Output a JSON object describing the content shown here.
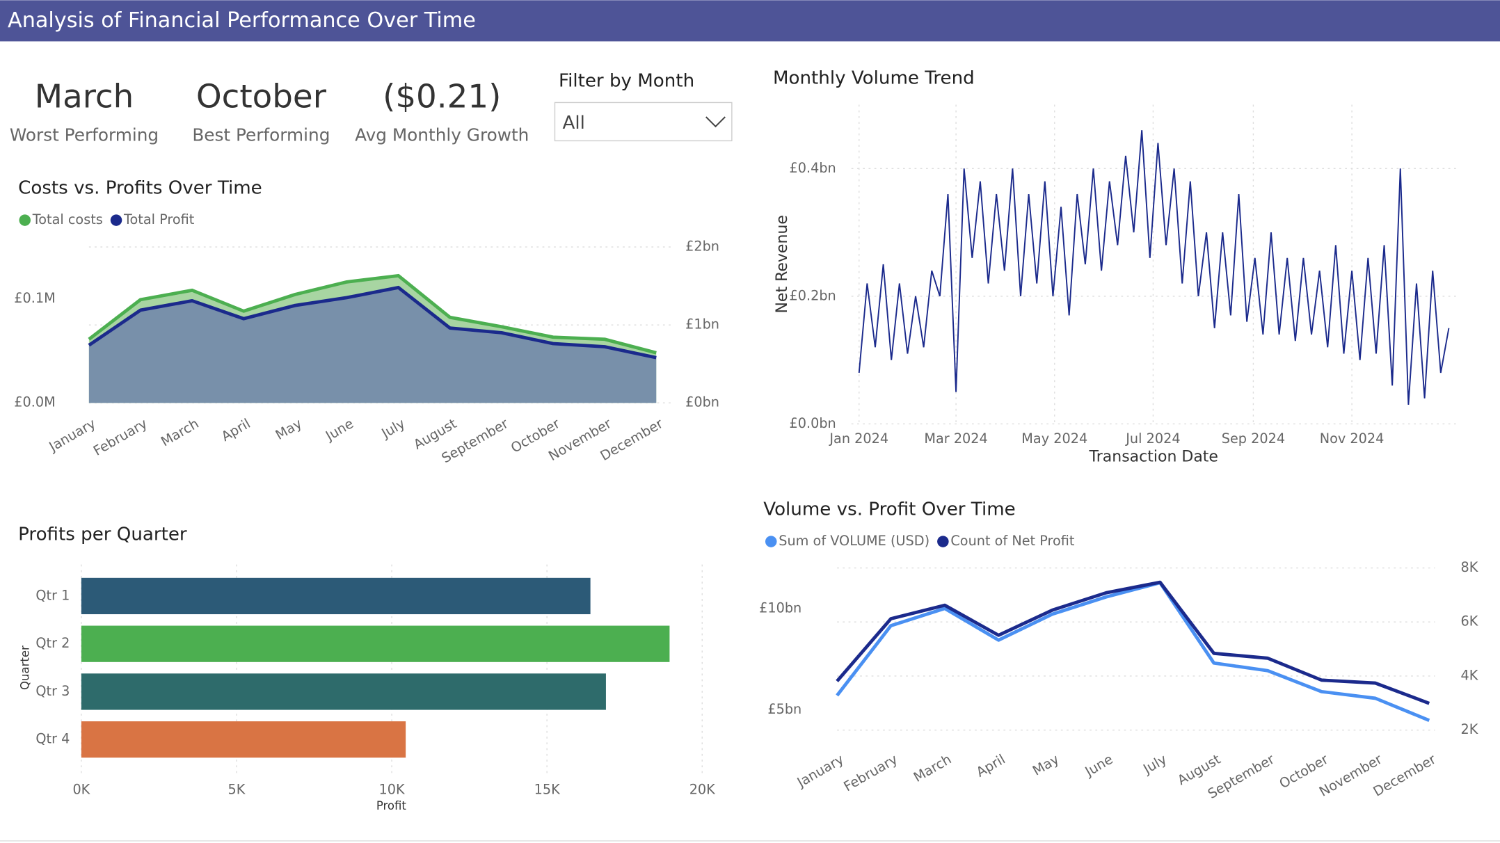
{
  "header": {
    "title": "Analysis of Financial Performance Over Time"
  },
  "kpis": [
    {
      "value": "March",
      "label": "Worst Performing"
    },
    {
      "value": "October",
      "label": "Best Performing"
    },
    {
      "value": "($0.21)",
      "label": "Avg Monthly Growth"
    }
  ],
  "filter": {
    "label": "Filter by Month",
    "selected": "All"
  },
  "chart_data": [
    {
      "type": "area",
      "title": "Costs vs. Profits Over Time",
      "categories": [
        "January",
        "February",
        "March",
        "April",
        "May",
        "June",
        "July",
        "August",
        "September",
        "October",
        "November",
        "December"
      ],
      "series": [
        {
          "name": "Total costs",
          "color": "#4caf50",
          "fill": "#a8d5a2",
          "values": [
            0.061,
            0.099,
            0.108,
            0.088,
            0.104,
            0.116,
            0.122,
            0.082,
            0.073,
            0.063,
            0.061,
            0.048
          ]
        },
        {
          "name": "Total Profit",
          "color": "#1b2a8c",
          "fill": "#7890aa",
          "axis": "y2",
          "values": [
            0.74,
            1.19,
            1.31,
            1.08,
            1.25,
            1.35,
            1.48,
            0.96,
            0.9,
            0.76,
            0.72,
            0.58
          ]
        }
      ],
      "ylim": [
        0,
        0.16
      ],
      "yticks": [
        {
          "value": 0,
          "label": "£0.0M"
        },
        {
          "value": 0.1,
          "label": "£0.1M"
        }
      ],
      "y2lim": [
        0,
        2.14
      ],
      "y2ticks": [
        {
          "value": 0,
          "label": "£0bn"
        },
        {
          "value": 1,
          "label": "£1bn"
        },
        {
          "value": 2,
          "label": "£2bn"
        }
      ],
      "grid": true
    },
    {
      "type": "line",
      "title": "Monthly Volume Trend",
      "xlabel": "Transaction Date",
      "ylabel": "Net Revenue",
      "color": "#1b2a8c",
      "x": [
        0,
        5,
        10,
        15,
        20,
        25,
        30,
        35,
        40,
        45,
        50,
        55,
        60,
        65,
        70,
        75,
        80,
        85,
        90,
        95,
        100,
        105,
        110,
        115,
        120,
        125,
        130,
        135,
        140,
        145,
        150,
        155,
        160,
        165,
        170,
        175,
        180,
        185,
        190,
        195,
        200,
        205,
        210,
        215,
        220,
        225,
        230,
        235,
        240,
        245,
        250,
        255,
        260,
        265,
        270,
        275,
        280,
        285,
        290,
        295,
        300,
        305,
        310,
        315,
        320,
        325,
        330,
        335,
        340,
        345,
        350,
        355,
        360,
        365
      ],
      "values": [
        0.08,
        0.22,
        0.12,
        0.25,
        0.1,
        0.22,
        0.11,
        0.2,
        0.12,
        0.24,
        0.2,
        0.36,
        0.05,
        0.4,
        0.26,
        0.38,
        0.22,
        0.36,
        0.24,
        0.4,
        0.2,
        0.36,
        0.22,
        0.38,
        0.2,
        0.34,
        0.17,
        0.36,
        0.25,
        0.4,
        0.24,
        0.38,
        0.28,
        0.42,
        0.3,
        0.46,
        0.26,
        0.44,
        0.28,
        0.4,
        0.22,
        0.38,
        0.2,
        0.3,
        0.15,
        0.3,
        0.17,
        0.36,
        0.16,
        0.26,
        0.14,
        0.3,
        0.14,
        0.26,
        0.13,
        0.26,
        0.14,
        0.24,
        0.12,
        0.28,
        0.11,
        0.24,
        0.1,
        0.26,
        0.11,
        0.28,
        0.06,
        0.4,
        0.03,
        0.22,
        0.04,
        0.24,
        0.08,
        0.15
      ],
      "xlim": [
        0,
        365
      ],
      "xticks": [
        {
          "value": 0,
          "label": "Jan 2024"
        },
        {
          "value": 60,
          "label": "Mar 2024"
        },
        {
          "value": 121,
          "label": "May 2024"
        },
        {
          "value": 182,
          "label": "Jul 2024"
        },
        {
          "value": 244,
          "label": "Sep 2024"
        },
        {
          "value": 305,
          "label": "Nov 2024"
        }
      ],
      "ylim": [
        0,
        0.5
      ],
      "yticks": [
        {
          "value": 0,
          "label": "£0.0bn"
        },
        {
          "value": 0.2,
          "label": "£0.2bn"
        },
        {
          "value": 0.4,
          "label": "£0.4bn"
        }
      ],
      "grid": true
    },
    {
      "type": "bar",
      "horizontal": true,
      "title": "Profits per Quarter",
      "xlabel": "Profit",
      "ylabel": "Quarter",
      "categories": [
        "Qtr 1",
        "Qtr 2",
        "Qtr 3",
        "Qtr 4"
      ],
      "values": [
        16400,
        18950,
        16900,
        10450
      ],
      "colors": [
        "#2c5a77",
        "#4caf50",
        "#2e6b6b",
        "#d97444"
      ],
      "xlim": [
        0,
        20000
      ],
      "xticks": [
        {
          "value": 0,
          "label": "0K"
        },
        {
          "value": 5000,
          "label": "5K"
        },
        {
          "value": 10000,
          "label": "10K"
        },
        {
          "value": 15000,
          "label": "15K"
        },
        {
          "value": 20000,
          "label": "20K"
        }
      ],
      "grid": true
    },
    {
      "type": "line",
      "title": "Volume vs. Profit Over Time",
      "categories": [
        "January",
        "February",
        "March",
        "April",
        "May",
        "June",
        "July",
        "August",
        "September",
        "October",
        "November",
        "December"
      ],
      "series": [
        {
          "name": "Sum of VOLUME (USD)",
          "color": "#4a90f2",
          "values": [
            5.71,
            9.15,
            10.0,
            8.44,
            9.72,
            10.57,
            11.27,
            7.31,
            6.93,
            5.9,
            5.57,
            4.48
          ]
        },
        {
          "name": "Count of Net Profit",
          "color": "#1b2a8c",
          "axis": "y2",
          "values": [
            3810,
            6120,
            6620,
            5510,
            6440,
            7080,
            7470,
            4840,
            4660,
            3850,
            3740,
            2990
          ]
        }
      ],
      "ylim": [
        3,
        12
      ],
      "yticks": [
        {
          "value": 5,
          "label": "£5bn"
        },
        {
          "value": 10,
          "label": "£10bn"
        }
      ],
      "y2lim": [
        1250,
        8000
      ],
      "y2ticks": [
        {
          "value": 2000,
          "label": "2K"
        },
        {
          "value": 4000,
          "label": "4K"
        },
        {
          "value": 6000,
          "label": "6K"
        },
        {
          "value": 8000,
          "label": "8K"
        }
      ],
      "grid": true
    }
  ]
}
